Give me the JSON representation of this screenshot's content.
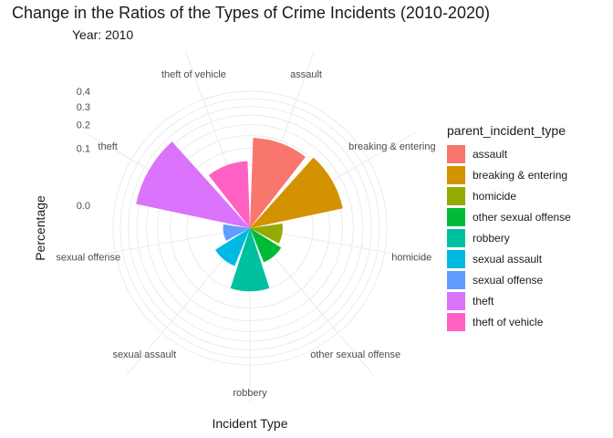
{
  "chart_data": {
    "type": "bar",
    "coord": "polar",
    "title": "Change in the Ratios of the Types of Crime Incidents (2010-2020)",
    "subtitle": "Year: 2010",
    "xlabel": "Incident Type",
    "ylabel": "Percentage",
    "scale": "sqrt",
    "y_ticks": [
      0.0,
      0.1,
      0.2,
      0.3,
      0.4
    ],
    "y_tick_labels": [
      "0.0",
      "0.1",
      "0.2",
      "0.3",
      "0.4"
    ],
    "categories": [
      "assault",
      "breaking & entering",
      "homicide",
      "other sexual offense",
      "robbery",
      "sexual assault",
      "sexual offense",
      "theft",
      "theft of vehicle"
    ],
    "values": [
      0.14,
      0.16,
      0.003,
      0.006,
      0.05,
      0.01,
      0.0005,
      0.27,
      0.06
    ],
    "colors": [
      "#F8766D",
      "#D39200",
      "#93AA00",
      "#00BA38",
      "#00C19F",
      "#00B9E3",
      "#619CFF",
      "#DB72FB",
      "#FF61C3"
    ],
    "legend_title": "parent_incident_type",
    "legend_position": "right",
    "grid": true
  }
}
